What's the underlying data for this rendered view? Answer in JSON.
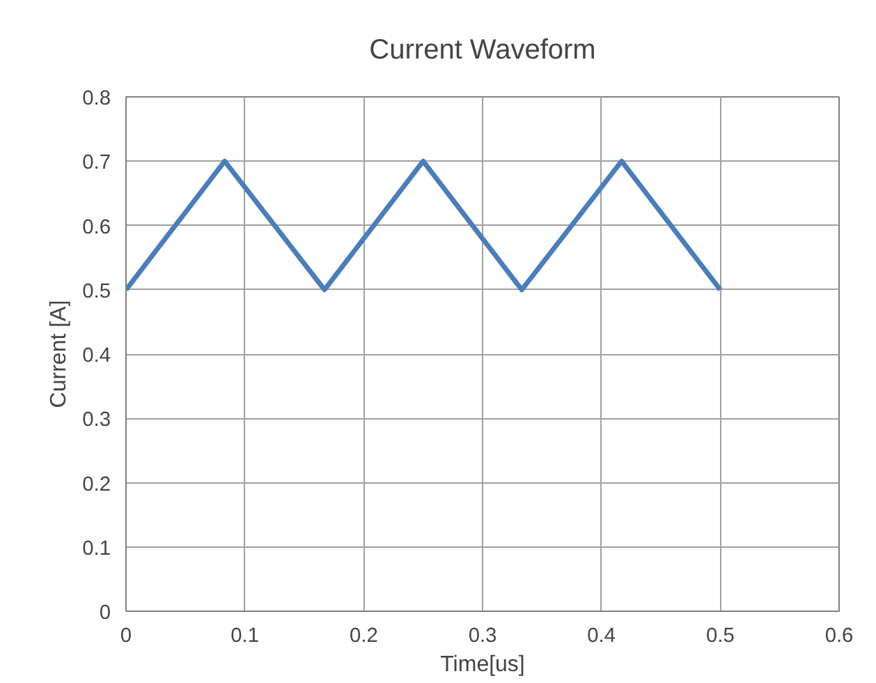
{
  "chart_data": {
    "type": "line",
    "title": "Current Waveform",
    "xlabel": "Time[us]",
    "ylabel": "Current [A]",
    "x": [
      0,
      0.083,
      0.167,
      0.25,
      0.333,
      0.417,
      0.5
    ],
    "series": [
      {
        "color": "#4a7ebb",
        "values": [
          0.5,
          0.7,
          0.5,
          0.7,
          0.5,
          0.7,
          0.5
        ]
      }
    ],
    "xlim": [
      0,
      0.6
    ],
    "xticks": [
      0,
      0.1,
      0.2,
      0.3,
      0.4,
      0.5,
      0.6
    ],
    "ylim": [
      0,
      0.8
    ],
    "yticks": [
      0,
      0.1,
      0.2,
      0.3,
      0.4,
      0.5,
      0.6,
      0.7,
      0.8
    ],
    "grid": true,
    "marker": "none",
    "line_style": "solid"
  }
}
